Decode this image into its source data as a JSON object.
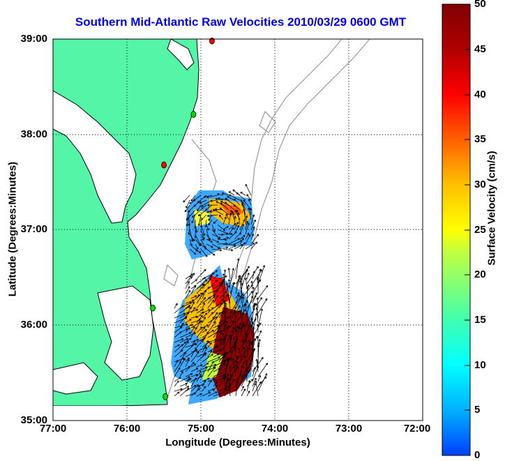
{
  "title": "Southern Mid-Atlantic Raw Velocities 2010/03/29 0600 GMT",
  "map": {
    "xlabel": "Longitude (Degrees:Minutes)",
    "ylabel": "Latitude (Degrees:Minutes)",
    "x_ticks": [
      "77:00",
      "76:00",
      "75:00",
      "74:00",
      "73:00",
      "72:00"
    ],
    "y_ticks": [
      "39:00",
      "38:00",
      "37:00",
      "36:00",
      "35:00"
    ],
    "lon_range": [
      -77,
      -72
    ],
    "lat_range": [
      35,
      39
    ],
    "grid": true
  },
  "colorbar": {
    "label": "Surface Velocity (cm/s)",
    "ticks": [
      "50",
      "45",
      "40",
      "35",
      "30",
      "25",
      "20",
      "15",
      "10",
      "5",
      "0"
    ],
    "range": [
      0,
      50
    ],
    "colors": [
      "#0040ff",
      "#00b0ff",
      "#00ffff",
      "#40ffb0",
      "#c0ff40",
      "#ffff00",
      "#ffc000",
      "#ff6000",
      "#ff0000",
      "#b00000",
      "#800000"
    ]
  },
  "land_color": "#55f5a8",
  "stations": [
    {
      "lon": -74.85,
      "lat": 38.98,
      "color": "#ff0000"
    },
    {
      "lon": -75.1,
      "lat": 38.21,
      "color": "#00dd00"
    },
    {
      "lon": -75.5,
      "lat": 37.68,
      "color": "#ff0000"
    },
    {
      "lon": -75.65,
      "lat": 36.18,
      "color": "#00dd00"
    },
    {
      "lon": -75.48,
      "lat": 35.25,
      "color": "#00dd00"
    }
  ]
}
